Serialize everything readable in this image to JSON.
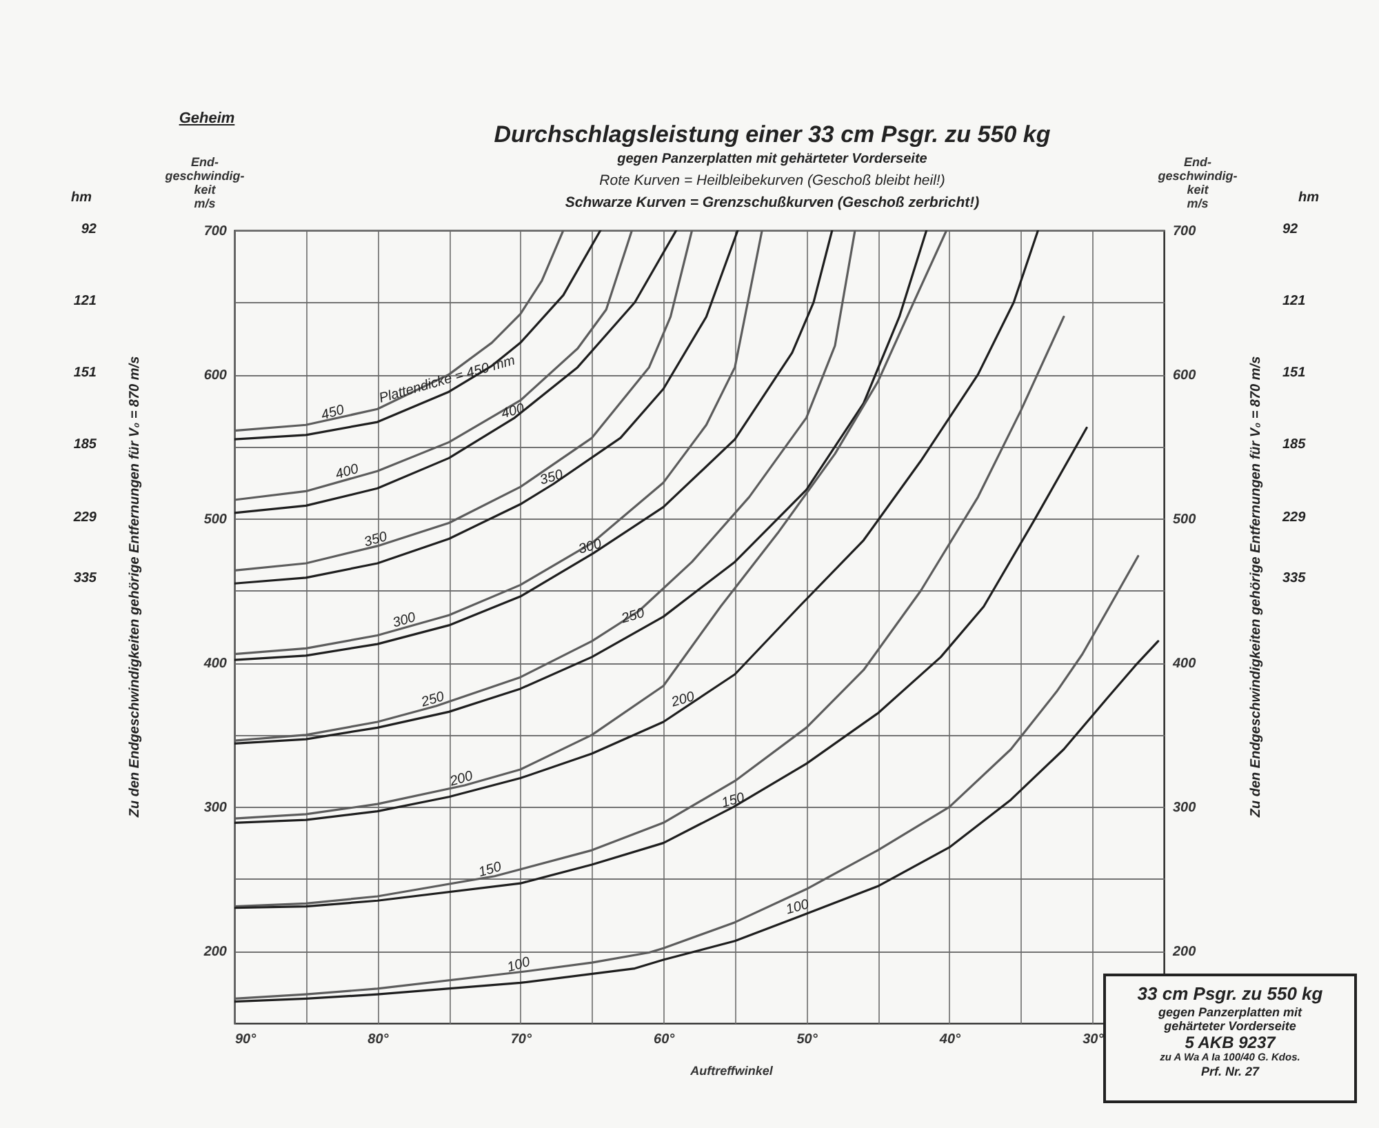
{
  "chart_data": {
    "type": "line",
    "title": "Durchschlagsleistung einer 33 cm Psgr. zu 550 kg",
    "subtitle": "gegen Panzerplatten mit gehärteter Vorderseite",
    "xlabel": "Auftreffwinkel",
    "ylabel": "End-\ngeschwindig-\nkeit\nm/s",
    "y2label": "End-\ngeschwindig-\nkeit\nm/s",
    "xlim": [
      90,
      25
    ],
    "xticks": [
      {
        "value": 90,
        "label": "90°"
      },
      {
        "value": 85,
        "label": null
      },
      {
        "value": 80,
        "label": "80°"
      },
      {
        "value": 75,
        "label": null
      },
      {
        "value": 70,
        "label": "70°"
      },
      {
        "value": 65,
        "label": null
      },
      {
        "value": 60,
        "label": "60°"
      },
      {
        "value": 55,
        "label": null
      },
      {
        "value": 50,
        "label": "50°"
      },
      {
        "value": 45,
        "label": null
      },
      {
        "value": 40,
        "label": "40°"
      },
      {
        "value": 35,
        "label": null
      },
      {
        "value": 30,
        "label": "30°"
      }
    ],
    "ylim": [
      150,
      700
    ],
    "yticks": [
      200,
      {
        "value": 250,
        "label": null
      },
      300,
      {
        "value": 350,
        "label": null
      },
      400,
      {
        "value": 450,
        "label": null
      },
      500,
      {
        "value": 550,
        "label": null
      },
      600,
      {
        "value": 650,
        "label": null
      },
      700
    ],
    "y2lim": [
      150,
      700
    ],
    "y2ticks": [
      200,
      {
        "value": 250,
        "label": null
      },
      300,
      {
        "value": 350,
        "label": null
      },
      400,
      {
        "value": 450,
        "label": null
      },
      500,
      {
        "value": 550,
        "label": null
      },
      600,
      {
        "value": 650,
        "label": null
      },
      700
    ],
    "grid": true,
    "legend": false,
    "series": [
      {
        "color": "#5c5c5c",
        "x": [
          90,
          85,
          80,
          75,
          72,
          70,
          68.5,
          67
        ],
        "values": [
          561,
          565,
          576,
          600,
          622,
          642,
          665,
          700
        ]
      },
      {
        "color": "#1e1e1e",
        "x": [
          90,
          85,
          80,
          75,
          72,
          70,
          67,
          64.4
        ],
        "values": [
          555,
          558,
          567,
          588,
          606,
          622,
          655,
          700
        ]
      },
      {
        "color": "#5c5c5c",
        "x": [
          90,
          85,
          80,
          75,
          70,
          66,
          64,
          62.2
        ],
        "values": [
          513,
          519,
          533,
          553,
          582,
          618,
          645,
          700
        ]
      },
      {
        "color": "#1e1e1e",
        "x": [
          90,
          85,
          80,
          75,
          70.4,
          66,
          62,
          59.1
        ],
        "values": [
          504,
          509,
          521,
          542,
          570,
          605,
          650,
          700
        ]
      },
      {
        "color": "#5c5c5c",
        "x": [
          90,
          85,
          80,
          75,
          70,
          65,
          61,
          59.5,
          58
        ],
        "values": [
          464,
          469,
          481,
          497,
          522,
          556,
          605,
          640,
          700
        ]
      },
      {
        "color": "#1e1e1e",
        "x": [
          90,
          85,
          80,
          75,
          70,
          67.7,
          63,
          60,
          57,
          54.8
        ],
        "values": [
          455,
          459,
          469,
          486,
          510,
          524,
          556,
          590,
          640,
          700
        ]
      },
      {
        "color": "#5c5c5c",
        "x": [
          90,
          85,
          80,
          75,
          70,
          65,
          60,
          57,
          55,
          53.1
        ],
        "values": [
          406,
          410,
          419,
          433,
          454,
          483,
          525,
          565,
          605,
          700
        ]
      },
      {
        "color": "#1e1e1e",
        "x": [
          90,
          85,
          80,
          75,
          70,
          64.9,
          60,
          55,
          51,
          49.5,
          48.2
        ],
        "values": [
          402,
          405,
          413,
          426,
          446,
          476,
          508,
          555,
          615,
          650,
          700
        ]
      },
      {
        "color": "#5c5c5c",
        "x": [
          90,
          85,
          80,
          75.9,
          70,
          65,
          61.7,
          58,
          54,
          50,
          48,
          46.6
        ],
        "values": [
          346,
          350,
          359,
          370,
          390,
          415,
          436,
          470,
          515,
          570,
          620,
          700
        ]
      },
      {
        "color": "#1e1e1e",
        "x": [
          90,
          85,
          80,
          75,
          70,
          65,
          60,
          55,
          50,
          46,
          43.5,
          41.6
        ],
        "values": [
          344,
          347,
          355,
          366,
          382,
          404,
          432,
          470,
          520,
          580,
          640,
          700
        ]
      },
      {
        "color": "#5c5c5c",
        "x": [
          90,
          85,
          80,
          73.9,
          70,
          65,
          60,
          56,
          52,
          48,
          45,
          42.5,
          40.2
        ],
        "values": [
          292,
          295,
          302,
          315,
          326,
          350,
          384,
          439,
          490,
          545,
          595,
          650,
          700
        ]
      },
      {
        "color": "#1e1e1e",
        "x": [
          90,
          85,
          80,
          75,
          70,
          65,
          60,
          55,
          50.5,
          46,
          42,
          38,
          35.5,
          33.8
        ],
        "values": [
          289,
          291,
          297,
          307,
          320,
          337,
          359,
          392,
          439,
          485,
          540,
          600,
          650,
          700
        ]
      },
      {
        "color": "#5c5c5c",
        "x": [
          90,
          85,
          80,
          71.8,
          65,
          60,
          55,
          50,
          46,
          42,
          38,
          35,
          32
        ],
        "values": [
          231,
          233,
          238,
          252,
          270,
          289,
          318,
          355,
          395,
          450,
          515,
          575,
          640
        ]
      },
      {
        "color": "#1e1e1e",
        "x": [
          90,
          85,
          80,
          70,
          65,
          60,
          55.1,
          50,
          45,
          40.6,
          37.6,
          34,
          30.4
        ],
        "values": [
          230,
          231,
          235,
          247,
          260,
          275,
          300,
          330,
          365,
          404,
          439,
          500,
          563
        ]
      },
      {
        "color": "#5c5c5c",
        "x": [
          90,
          85,
          80,
          69.6,
          65,
          61,
          60,
          55,
          50,
          45,
          40,
          35.7,
          32.5,
          30.7,
          28.8,
          26.8
        ],
        "values": [
          167,
          170,
          174,
          186,
          192,
          199,
          202,
          220,
          243,
          270,
          300,
          340,
          380,
          406,
          439,
          474
        ]
      },
      {
        "color": "#1e1e1e",
        "x": [
          90,
          85,
          80,
          70,
          62,
          60,
          55,
          50.5,
          45,
          40,
          35.7,
          32,
          29,
          27,
          25.4
        ],
        "values": [
          165,
          167,
          170,
          178,
          188,
          194,
          207,
          224,
          245,
          272,
          305,
          340,
          375,
          398,
          415
        ]
      }
    ],
    "annotations": [
      "Geheim",
      "Rote Kurven = Heilbleibekurven (Geschoß bleibt heil!)",
      "Schwarze Kurven = Grenzschußkurven (Geschoß zerbricht!)",
      "Zu den Endgeschwindigkeiten gehörige Entfernungen für V₀ = 870 m/s",
      "Zu den Endgeschwindigkeiten gehörige Entfernungen für V₀ = 870 m/s",
      "hm",
      "hm",
      "33 cm Psgr. zu 550 kg",
      "gegen Panzerplatten mit gehärteter Vorderseite",
      "5 AKB 9237",
      "zu A Wa A Ia 100/40 G. Kdos.",
      "Prf. Nr. 27",
      "92",
      "121",
      "151",
      "185",
      "229",
      "335",
      "92",
      "121",
      "151",
      "185",
      "229",
      "335",
      {
        "text": "450",
        "x": 83,
        "y": 569
      },
      {
        "text": "Plattendicke = 450 mm",
        "x": 75,
        "y": 592
      },
      {
        "text": "400",
        "x": 82,
        "y": 528
      },
      {
        "text": "400",
        "x": 70.4,
        "y": 570
      },
      {
        "text": "350",
        "x": 80,
        "y": 481
      },
      {
        "text": "350",
        "x": 67.7,
        "y": 524
      },
      {
        "text": "300",
        "x": 78,
        "y": 425
      },
      {
        "text": "300",
        "x": 65,
        "y": 476
      },
      {
        "text": "250",
        "x": 76,
        "y": 370
      },
      {
        "text": "250",
        "x": 62,
        "y": 428
      },
      {
        "text": "200",
        "x": 74,
        "y": 315
      },
      {
        "text": "200",
        "x": 58.5,
        "y": 370
      },
      {
        "text": "150",
        "x": 72,
        "y": 252
      },
      {
        "text": "150",
        "x": 55,
        "y": 300
      },
      {
        "text": "100",
        "x": 70,
        "y": 186
      },
      {
        "text": "100",
        "x": 50.5,
        "y": 226
      }
    ]
  }
}
